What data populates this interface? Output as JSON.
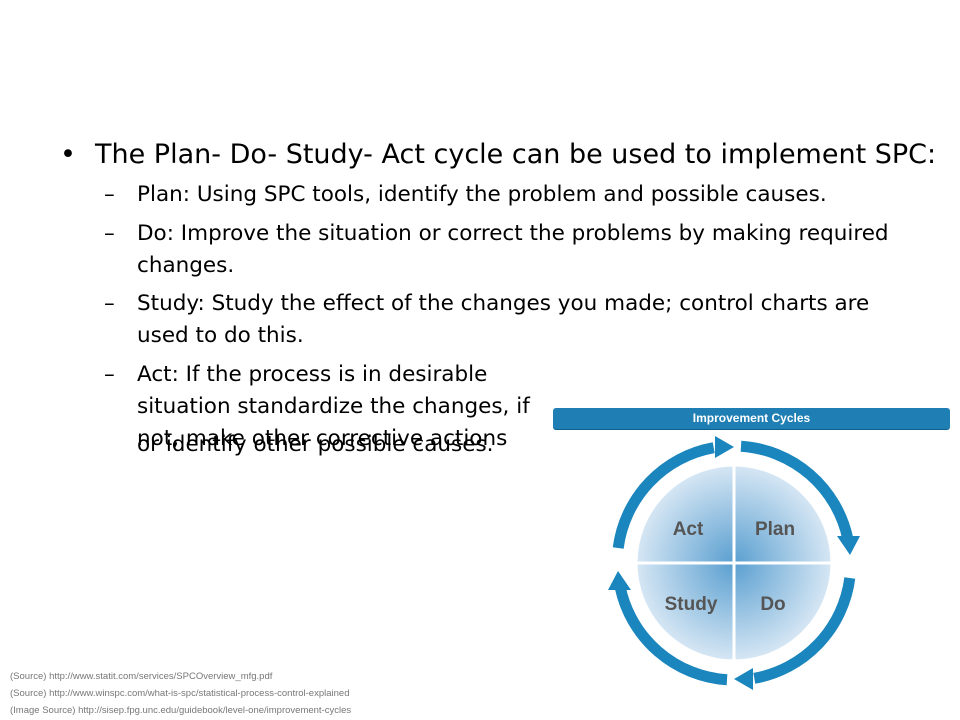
{
  "main_bullet": {
    "marker": "•",
    "text": "The Plan- Do- Study- Act cycle can be used to implement SPC:"
  },
  "sub_bullets": [
    {
      "marker": "–",
      "text": "Plan: Using SPC tools, identify the problem and possible causes."
    },
    {
      "marker": "–",
      "text": "Do: Improve the situation or correct the problems by making required changes."
    },
    {
      "marker": "–",
      "text": "Study: Study the effect of the changes you made; control charts are used to do this."
    },
    {
      "marker": "–",
      "text": "Act: If the process is in desirable situation standardize the changes, if not, make other corrective actions"
    }
  ],
  "continuation_text": "or identify other possible causes.",
  "diagram": {
    "banner": "Improvement Cycles",
    "quadrants": {
      "act": "Act",
      "plan": "Plan",
      "study": "Study",
      "do": "Do"
    },
    "colors": {
      "banner": "#1f7fb4",
      "arrows": "#1a86bd",
      "quadrant_dark": "#5a9fd0",
      "quadrant_light": "#e3eef8",
      "label": "#555555"
    }
  },
  "sources": [
    "(Source) http://www.statit.com/services/SPCOverview_mfg.pdf",
    "(Source) http://www.winspc.com/what-is-spc/statistical-process-control-explained",
    "(Image Source) http://sisep.fpg.unc.edu/guidebook/level-one/improvement-cycles"
  ]
}
